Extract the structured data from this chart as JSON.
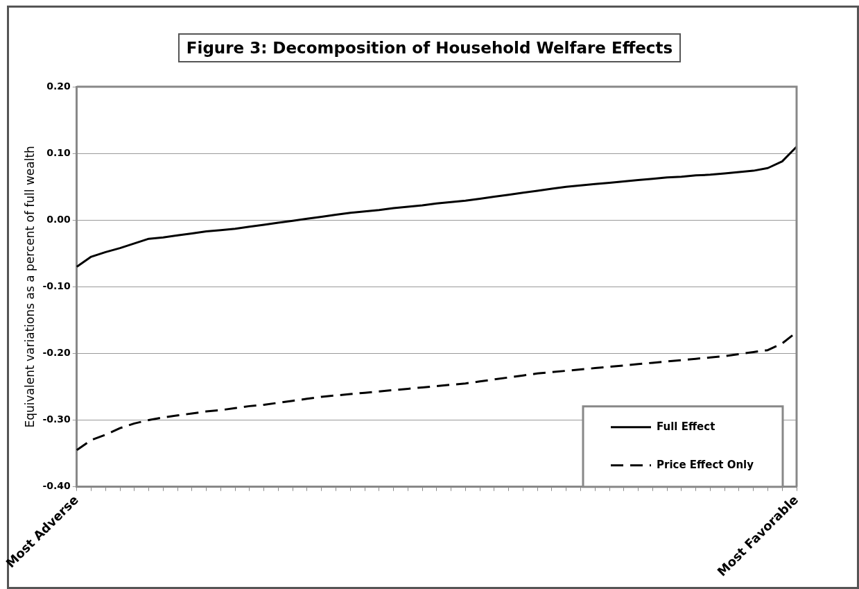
{
  "chart_data": {
    "type": "line",
    "title": "Figure 3: Decomposition of Household Welfare Effects",
    "ylabel": "Equivalent variations as a percent of full wealth",
    "categories": [
      "Most Adverse",
      null,
      null,
      null,
      null,
      null,
      null,
      null,
      null,
      null,
      null,
      null,
      null,
      null,
      null,
      null,
      null,
      null,
      null,
      null,
      null,
      null,
      null,
      null,
      null,
      null,
      null,
      null,
      null,
      null,
      null,
      null,
      null,
      null,
      null,
      null,
      null,
      null,
      null,
      null,
      null,
      null,
      null,
      null,
      null,
      null,
      null,
      null,
      null,
      null,
      "Most Favorable"
    ],
    "series": [
      {
        "name": "Full Effect",
        "color": "#000000",
        "line_style": "solid",
        "values": [
          -0.07,
          -0.055,
          -0.048,
          -0.042,
          -0.035,
          -0.028,
          -0.026,
          -0.023,
          -0.02,
          -0.017,
          -0.015,
          -0.013,
          -0.01,
          -0.007,
          -0.004,
          -0.001,
          0.002,
          0.005,
          0.008,
          0.011,
          0.013,
          0.015,
          0.018,
          0.02,
          0.022,
          0.025,
          0.027,
          0.029,
          0.032,
          0.035,
          0.038,
          0.041,
          0.044,
          0.047,
          0.05,
          0.052,
          0.054,
          0.056,
          0.058,
          0.06,
          0.062,
          0.064,
          0.065,
          0.067,
          0.068,
          0.07,
          0.072,
          0.074,
          0.078,
          0.088,
          0.11
        ]
      },
      {
        "name": "Price Effect Only",
        "color": "#000000",
        "line_style": "dashed",
        "values": [
          -0.345,
          -0.33,
          -0.322,
          -0.312,
          -0.305,
          -0.3,
          -0.296,
          -0.293,
          -0.29,
          -0.287,
          -0.285,
          -0.282,
          -0.279,
          -0.277,
          -0.274,
          -0.271,
          -0.268,
          -0.265,
          -0.263,
          -0.261,
          -0.259,
          -0.257,
          -0.255,
          -0.253,
          -0.251,
          -0.249,
          -0.247,
          -0.245,
          -0.242,
          -0.239,
          -0.236,
          -0.233,
          -0.23,
          -0.228,
          -0.226,
          -0.224,
          -0.222,
          -0.22,
          -0.218,
          -0.216,
          -0.214,
          -0.212,
          -0.21,
          -0.208,
          -0.206,
          -0.204,
          -0.201,
          -0.198,
          -0.195,
          -0.185,
          -0.168
        ]
      }
    ],
    "ylim": [
      -0.4,
      0.2
    ],
    "yticks": [
      {
        "value": -0.4,
        "label": "-0.40"
      },
      {
        "value": -0.3,
        "label": "-0.30"
      },
      {
        "value": -0.2,
        "label": "-0.20"
      },
      {
        "value": -0.1,
        "label": "-0.10"
      },
      {
        "value": 0,
        "label": "0.00"
      },
      {
        "value": 0.1,
        "label": "0.10"
      },
      {
        "value": 0.2,
        "label": "0.20"
      }
    ],
    "grid": "y",
    "legend": "bottom right",
    "marker": "none"
  }
}
